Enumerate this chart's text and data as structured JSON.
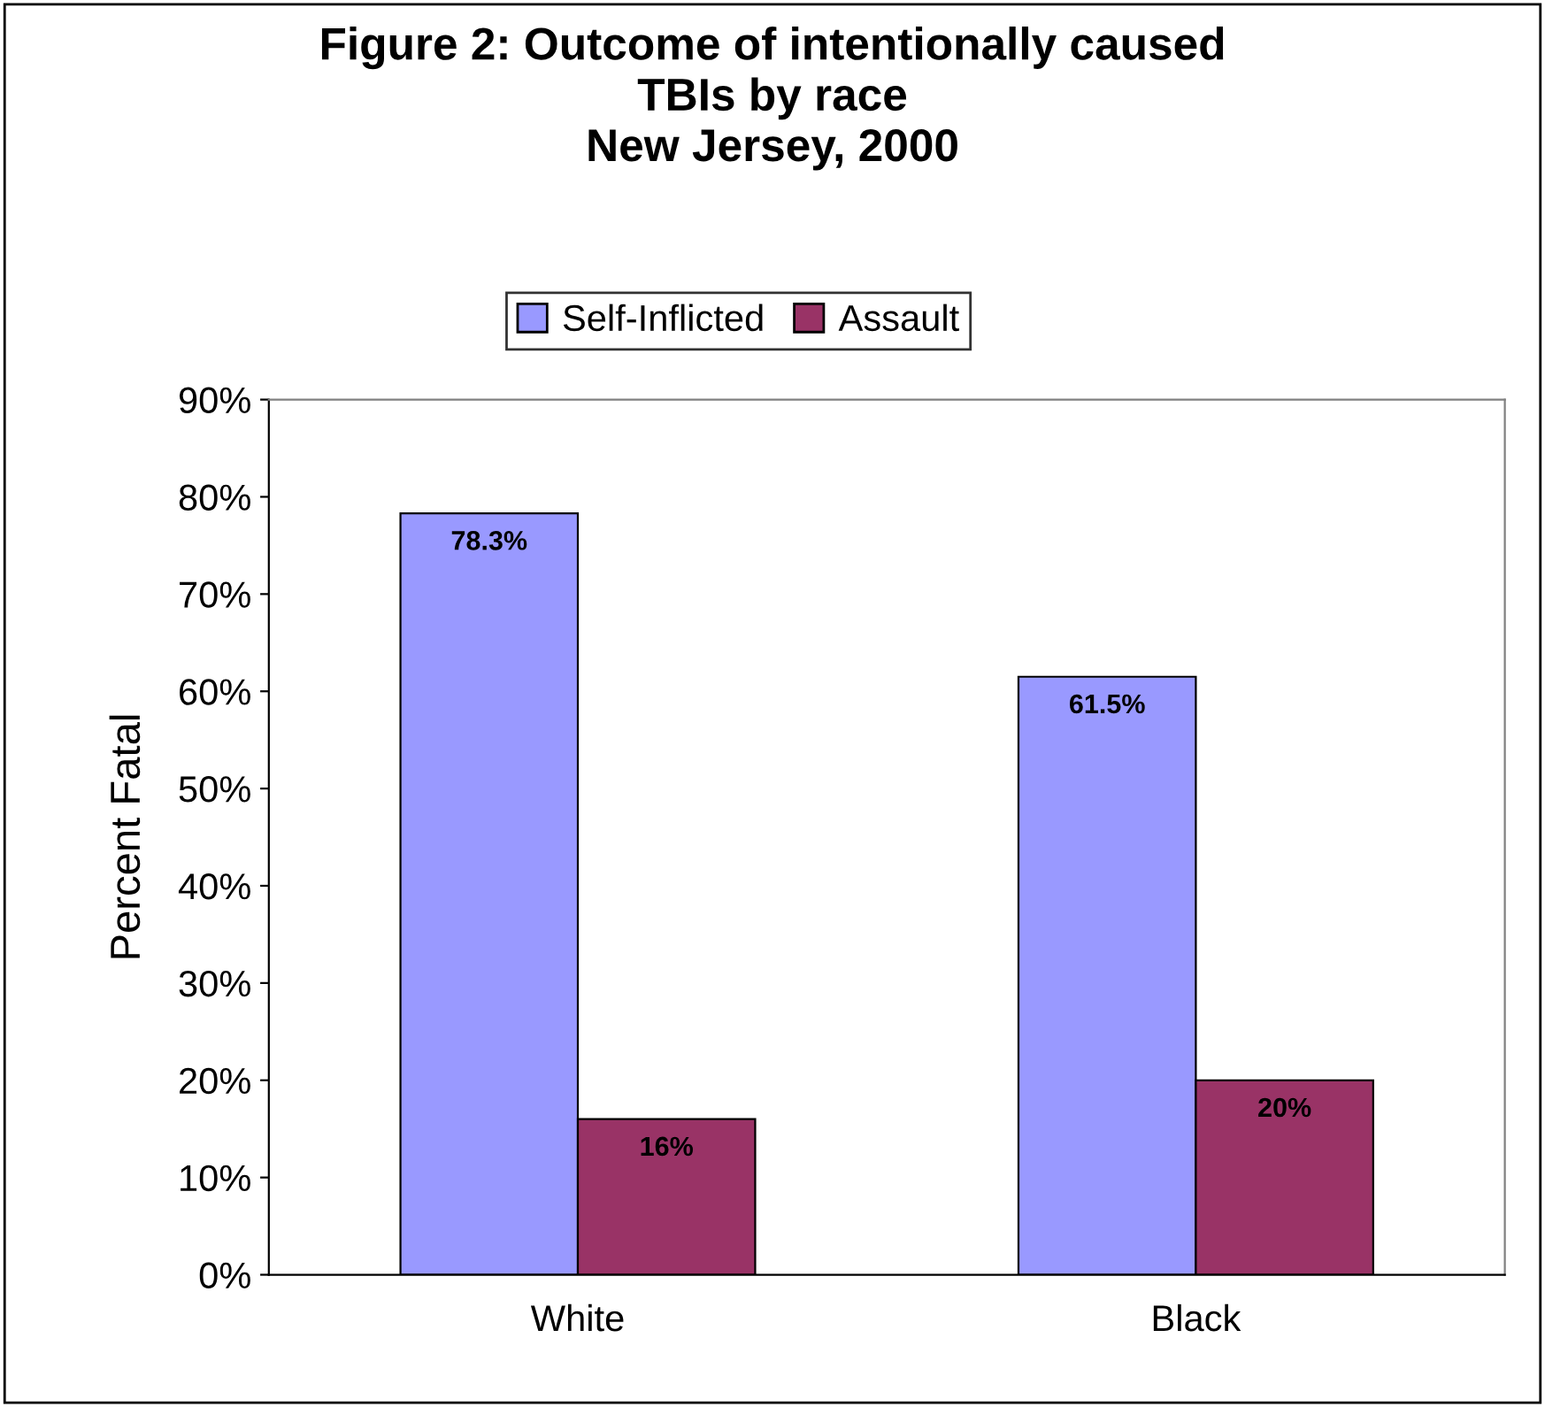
{
  "chart_data": {
    "type": "bar",
    "title": "Figure 2: Outcome of intentionally caused\nTBIs by race\nNew Jersey, 2000",
    "ylabel": "Percent Fatal",
    "categories": [
      "White",
      "Black"
    ],
    "series": [
      {
        "name": "Self-Inflicted",
        "color": "#9999ff",
        "values": [
          78.3,
          61.5
        ],
        "value_labels": [
          "78.3%",
          "61.5%"
        ]
      },
      {
        "name": "Assault",
        "color": "#993366",
        "values": [
          16,
          20
        ],
        "value_labels": [
          "16%",
          "20%"
        ]
      }
    ],
    "ylim": [
      0,
      90
    ],
    "yticks": [
      {
        "value": 0,
        "label": "0%"
      },
      {
        "value": 10,
        "label": "10%"
      },
      {
        "value": 20,
        "label": "20%"
      },
      {
        "value": 30,
        "label": "30%"
      },
      {
        "value": 40,
        "label": "40%"
      },
      {
        "value": 50,
        "label": "50%"
      },
      {
        "value": 60,
        "label": "60%"
      },
      {
        "value": 70,
        "label": "70%"
      },
      {
        "value": 80,
        "label": "80%"
      },
      {
        "value": 90,
        "label": "90%"
      }
    ],
    "legend": "top",
    "grid": false
  }
}
